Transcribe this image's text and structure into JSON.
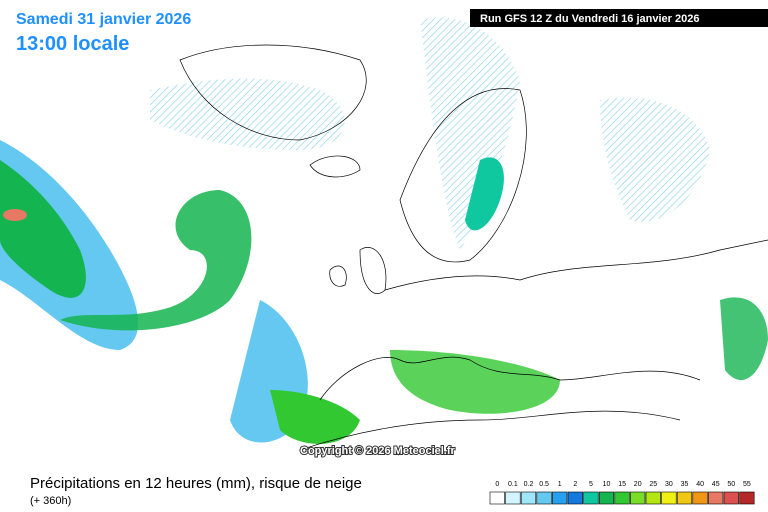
{
  "header": {
    "date": "Samedi 31 janvier 2026",
    "time": "13:00 locale",
    "run": "Run GFS 12 Z du Vendredi 16 janvier 2026"
  },
  "copyright": "Copyright © 2026 Meteociel.fr",
  "footer": {
    "title": "Précipitations en 12 heures (mm), risque de neige",
    "subtitle": "(+ 360h)"
  },
  "legend": {
    "items": [
      {
        "label": "0",
        "color": "#ffffff"
      },
      {
        "label": "0.1",
        "color": "#d2f5ff"
      },
      {
        "label": "0.2",
        "color": "#a0e6fa"
      },
      {
        "label": "0.5",
        "color": "#64c8f0"
      },
      {
        "label": "1",
        "color": "#28a0f0"
      },
      {
        "label": "2",
        "color": "#1478dc"
      },
      {
        "label": "5",
        "color": "#10c8a0"
      },
      {
        "label": "10",
        "color": "#14b450"
      },
      {
        "label": "15",
        "color": "#32c832"
      },
      {
        "label": "20",
        "color": "#78dc28"
      },
      {
        "label": "25",
        "color": "#b4e614"
      },
      {
        "label": "30",
        "color": "#f0f014"
      },
      {
        "label": "35",
        "color": "#f0c814"
      },
      {
        "label": "40",
        "color": "#f09614"
      },
      {
        "label": "45",
        "color": "#e67864"
      },
      {
        "label": "50",
        "color": "#dc5050"
      },
      {
        "label": "55",
        "color": "#b42828"
      }
    ]
  }
}
